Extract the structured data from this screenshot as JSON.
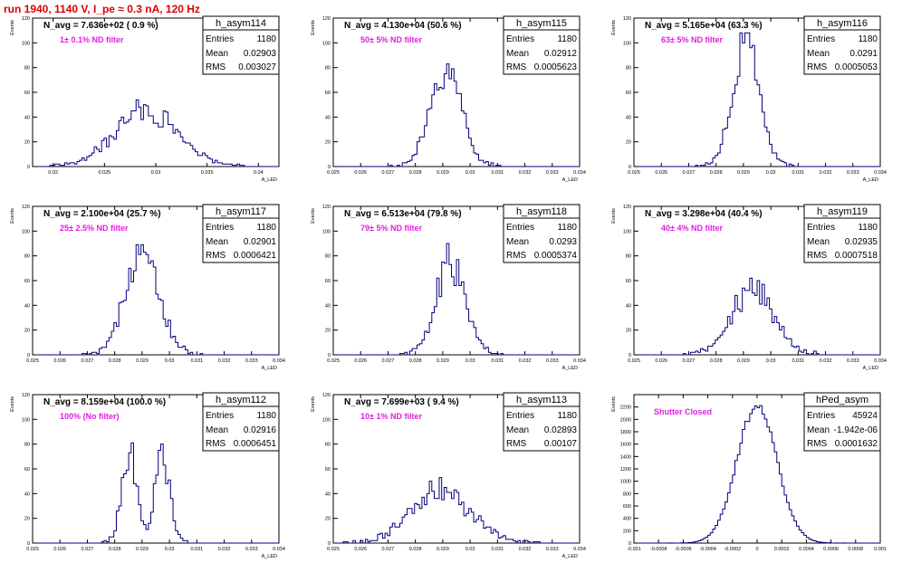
{
  "header": {
    "title": "run 1940,  1140 V, I_pe ≈ 0.3 nA, 120 Hz"
  },
  "chart_data": [
    {
      "type": "histogram",
      "name": "h_asym114",
      "xlabel": "A_LED",
      "ylabel": "Events",
      "xlim": [
        0.018,
        0.042
      ],
      "ylim": [
        0,
        120
      ],
      "x_ticks": [
        "0.02",
        "0.025",
        "0.03",
        "0.035",
        "0.04"
      ],
      "y_ticks": [
        "0",
        "20",
        "40",
        "60",
        "80",
        "100",
        "120"
      ],
      "navg": "N_avg = 7.636e+02 ( 0.9 %)",
      "filter": "1± 0.1% ND filter",
      "stats": {
        "entries": "1180",
        "mean": "0.02903",
        "rms": "0.003027"
      },
      "labels": {
        "entries": "Entries",
        "mean": "Mean",
        "rms": "RMS"
      },
      "mean": 0.02903,
      "rms": 0.003027,
      "peak": 46
    },
    {
      "type": "histogram",
      "name": "h_asym115",
      "xlabel": "A_LED",
      "ylabel": "Events",
      "xlim": [
        0.025,
        0.034
      ],
      "ylim": [
        0,
        120
      ],
      "x_ticks": [
        "0.025",
        "0.026",
        "0.027",
        "0.028",
        "0.029",
        "0.03",
        "0.031",
        "0.032",
        "0.033",
        "0.034"
      ],
      "y_ticks": [
        "0",
        "20",
        "40",
        "60",
        "80",
        "100",
        "120"
      ],
      "navg": "N_avg = 4.130e+04 (50.6 %)",
      "filter": "50± 5% ND filter",
      "stats": {
        "entries": "1180",
        "mean": "0.02912",
        "rms": "0.0005623"
      },
      "labels": {
        "entries": "Entries",
        "mean": "Mean",
        "rms": "RMS"
      },
      "mean": 0.02912,
      "rms": 0.0005623,
      "peak": 80
    },
    {
      "type": "histogram",
      "name": "h_asym116",
      "xlabel": "A_LED",
      "ylabel": "Events",
      "xlim": [
        0.025,
        0.034
      ],
      "ylim": [
        0,
        120
      ],
      "x_ticks": [
        "0.025",
        "0.026",
        "0.027",
        "0.028",
        "0.029",
        "0.03",
        "0.031",
        "0.032",
        "0.033",
        "0.034"
      ],
      "y_ticks": [
        "0",
        "20",
        "40",
        "60",
        "80",
        "100",
        "120"
      ],
      "navg": "N_avg = 5.165e+04 (63.3 %)",
      "filter": "63± 5% ND filter",
      "stats": {
        "entries": "1180",
        "mean": "0.0291",
        "rms": "0.0005053"
      },
      "labels": {
        "entries": "Entries",
        "mean": "Mean",
        "rms": "RMS"
      },
      "mean": 0.0291,
      "rms": 0.0005053,
      "peak": 95
    },
    {
      "type": "histogram",
      "name": "h_asym117",
      "xlabel": "A_LED",
      "ylabel": "Events",
      "xlim": [
        0.025,
        0.034
      ],
      "ylim": [
        0,
        120
      ],
      "x_ticks": [
        "0.025",
        "0.026",
        "0.027",
        "0.028",
        "0.029",
        "0.03",
        "0.031",
        "0.032",
        "0.033",
        "0.034"
      ],
      "y_ticks": [
        "0",
        "20",
        "40",
        "60",
        "80",
        "100",
        "120"
      ],
      "navg": "N_avg = 2.100e+04 (25.7 %)",
      "filter": "25± 2.5% ND filter",
      "stats": {
        "entries": "1180",
        "mean": "0.02901",
        "rms": "0.0006421"
      },
      "labels": {
        "entries": "Entries",
        "mean": "Mean",
        "rms": "RMS"
      },
      "mean": 0.02901,
      "rms": 0.0006421,
      "peak": 75
    },
    {
      "type": "histogram",
      "name": "h_asym118",
      "xlabel": "A_LED",
      "ylabel": "Events",
      "xlim": [
        0.025,
        0.034
      ],
      "ylim": [
        0,
        120
      ],
      "x_ticks": [
        "0.025",
        "0.026",
        "0.027",
        "0.028",
        "0.029",
        "0.03",
        "0.031",
        "0.032",
        "0.033",
        "0.034"
      ],
      "y_ticks": [
        "0",
        "20",
        "40",
        "60",
        "80",
        "100",
        "120"
      ],
      "navg": "N_avg = 6.513e+04 (79.8 %)",
      "filter": "79± 5% ND filter",
      "stats": {
        "entries": "1180",
        "mean": "0.0293",
        "rms": "0.0005374"
      },
      "labels": {
        "entries": "Entries",
        "mean": "Mean",
        "rms": "RMS"
      },
      "mean": 0.0293,
      "rms": 0.0005374,
      "peak": 75
    },
    {
      "type": "histogram",
      "name": "h_asym119",
      "xlabel": "A_LED",
      "ylabel": "Events",
      "xlim": [
        0.025,
        0.034
      ],
      "ylim": [
        0,
        120
      ],
      "x_ticks": [
        "0.025",
        "0.026",
        "0.027",
        "0.028",
        "0.029",
        "0.03",
        "0.031",
        "0.032",
        "0.033",
        "0.034"
      ],
      "y_ticks": [
        "0",
        "20",
        "40",
        "60",
        "80",
        "100",
        "120"
      ],
      "navg": "N_avg = 3.298e+04 (40.4 %)",
      "filter": "40± 4% ND filter",
      "stats": {
        "entries": "1180",
        "mean": "0.02935",
        "rms": "0.0007518"
      },
      "labels": {
        "entries": "Entries",
        "mean": "Mean",
        "rms": "RMS"
      },
      "mean": 0.02935,
      "rms": 0.0007518,
      "peak": 54
    },
    {
      "type": "histogram",
      "name": "h_asym112",
      "xlabel": "A_LED",
      "ylabel": "Events",
      "xlim": [
        0.025,
        0.034
      ],
      "ylim": [
        0,
        120
      ],
      "x_ticks": [
        "0.025",
        "0.026",
        "0.027",
        "0.028",
        "0.029",
        "0.03",
        "0.031",
        "0.032",
        "0.033",
        "0.034"
      ],
      "y_ticks": [
        "0",
        "20",
        "40",
        "60",
        "80",
        "100",
        "120"
      ],
      "navg": "N_avg = 8.159e+04 (100.0 %)",
      "filter": "100% (No filter)",
      "stats": {
        "entries": "1180",
        "mean": "0.02916",
        "rms": "0.0006451"
      },
      "labels": {
        "entries": "Entries",
        "mean": "Mean",
        "rms": "RMS"
      },
      "mean": 0.02916,
      "rms": 0.0006451,
      "peak": 72,
      "bimodal": [
        0.02855,
        0.02975
      ]
    },
    {
      "type": "histogram",
      "name": "h_asym113",
      "xlabel": "A_LED",
      "ylabel": "Events",
      "xlim": [
        0.025,
        0.034
      ],
      "ylim": [
        0,
        120
      ],
      "x_ticks": [
        "0.025",
        "0.026",
        "0.027",
        "0.028",
        "0.029",
        "0.03",
        "0.031",
        "0.032",
        "0.033",
        "0.034"
      ],
      "y_ticks": [
        "0",
        "20",
        "40",
        "60",
        "80",
        "100",
        "120"
      ],
      "navg": "N_avg = 7.699e+03 ( 9.4 %)",
      "filter": "10± 1% ND filter",
      "stats": {
        "entries": "1180",
        "mean": "0.02893",
        "rms": "0.00107"
      },
      "labels": {
        "entries": "Entries",
        "mean": "Mean",
        "rms": "RMS"
      },
      "mean": 0.02893,
      "rms": 0.00107,
      "peak": 43
    },
    {
      "type": "histogram",
      "name": "hPed_asym",
      "xlabel": "",
      "ylabel": "Events",
      "xlim": [
        -0.001,
        0.001
      ],
      "ylim": [
        0,
        2400
      ],
      "x_ticks": [
        "-0.001",
        "-0.0008",
        "-0.0006",
        "-0.0004",
        "-0.0002",
        "0",
        "0.0002",
        "0.0004",
        "0.0006",
        "0.0008",
        "0.001"
      ],
      "y_ticks": [
        "0",
        "200",
        "400",
        "600",
        "800",
        "1000",
        "1200",
        "1400",
        "1600",
        "1800",
        "2000",
        "2200"
      ],
      "navg": "",
      "filter": "Shutter Closed",
      "stats": {
        "entries": "45924",
        "mean": "-1.942e-06",
        "rms": "0.0001632"
      },
      "labels": {
        "entries": "Entries",
        "mean": "Mean",
        "rms": "RMS"
      },
      "mean": -1.942e-06,
      "rms": 0.0001632,
      "peak": 2200
    }
  ]
}
